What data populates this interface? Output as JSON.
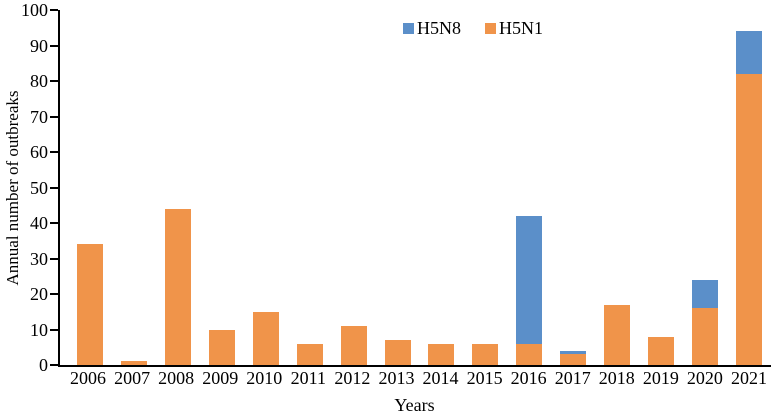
{
  "figure": {
    "y_axis_title": "Annual number of outbreaks",
    "x_axis_title": "Years"
  },
  "legend": {
    "position": "top-center",
    "items": [
      {
        "label": "H5N8",
        "color": "#5B8FC9"
      },
      {
        "label": "H5N1",
        "color": "#F0944A"
      }
    ]
  },
  "chart_data": {
    "type": "bar",
    "stacked": true,
    "title": "",
    "xlabel": "Years",
    "ylabel": "Annual number of outbreaks",
    "categories": [
      "2006",
      "2007",
      "2008",
      "2009",
      "2010",
      "2011",
      "2012",
      "2013",
      "2014",
      "2015",
      "2016",
      "2017",
      "2018",
      "2019",
      "2020",
      "2021"
    ],
    "series": [
      {
        "name": "H5N1",
        "color": "#F0944A",
        "values": [
          34,
          1,
          44,
          10,
          15,
          6,
          11,
          7,
          6,
          6,
          6,
          3,
          17,
          8,
          16,
          82
        ]
      },
      {
        "name": "H5N8",
        "color": "#5B8FC9",
        "values": [
          0,
          0,
          0,
          0,
          0,
          0,
          0,
          0,
          0,
          0,
          36,
          1,
          0,
          0,
          8,
          12
        ]
      }
    ],
    "stack_order_bottom_to_top": [
      "H5N1",
      "H5N8"
    ],
    "legend_order": [
      "H5N8",
      "H5N1"
    ],
    "ylim": [
      0,
      100
    ],
    "yticks": [
      0,
      10,
      20,
      30,
      40,
      50,
      60,
      70,
      80,
      90,
      100
    ],
    "grid": false,
    "axis_color": "#000000",
    "background_color": "#FFFFFF"
  }
}
